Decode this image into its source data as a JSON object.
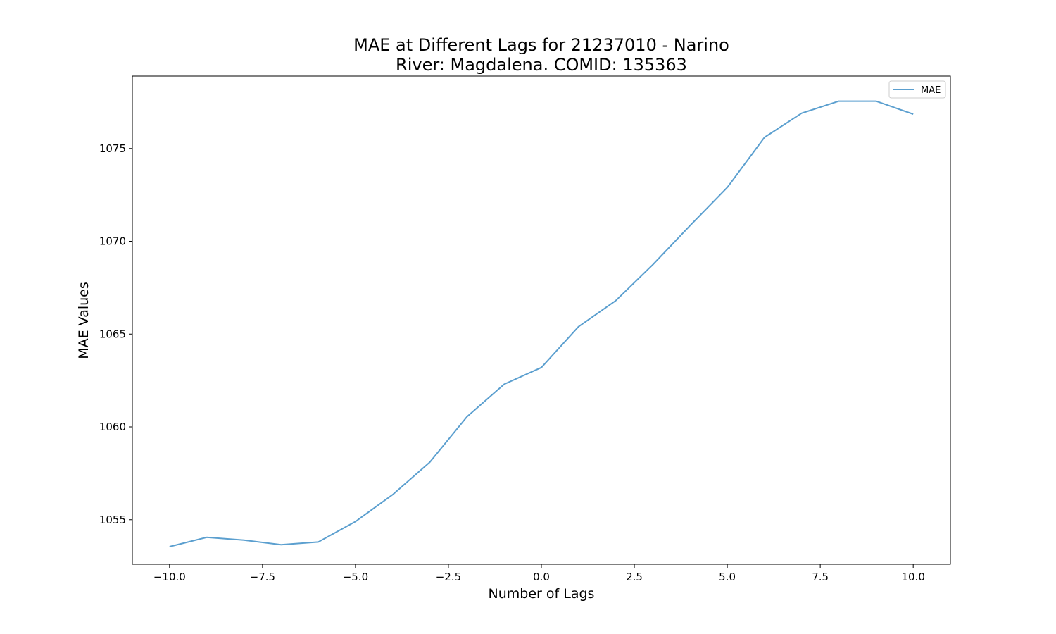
{
  "chart_data": {
    "type": "line",
    "title_line1": "MAE at Different Lags for 21237010 - Narino",
    "title_line2": "River: Magdalena. COMID: 135363",
    "xlabel": "Number of Lags",
    "ylabel": "MAE Values",
    "xlim": [
      -11,
      11
    ],
    "ylim": [
      1052.6,
      1078.9
    ],
    "x_ticks": [
      -10,
      -7.5,
      -5,
      -2.5,
      0,
      2.5,
      5,
      7.5,
      10
    ],
    "x_tick_labels": [
      "−10.0",
      "−7.5",
      "−5.0",
      "−2.5",
      "0.0",
      "2.5",
      "5.0",
      "7.5",
      "10.0"
    ],
    "y_ticks": [
      1055,
      1060,
      1065,
      1070,
      1075
    ],
    "y_tick_labels": [
      "1055",
      "1060",
      "1065",
      "1070",
      "1075"
    ],
    "legend_position": "top-right",
    "grid": false,
    "series": [
      {
        "name": "MAE",
        "color": "#5b9fcf",
        "x": [
          -10,
          -9,
          -8,
          -7,
          -6,
          -5,
          -4,
          -3,
          -2,
          -1,
          0,
          1,
          2,
          3,
          4,
          5,
          6,
          7,
          8,
          9,
          10
        ],
        "y": [
          1053.55,
          1054.05,
          1053.9,
          1053.65,
          1053.8,
          1054.9,
          1056.35,
          1058.1,
          1060.55,
          1062.3,
          1063.2,
          1065.4,
          1066.8,
          1068.75,
          1070.85,
          1072.9,
          1075.6,
          1076.9,
          1077.55,
          1077.55,
          1076.85
        ]
      }
    ]
  }
}
